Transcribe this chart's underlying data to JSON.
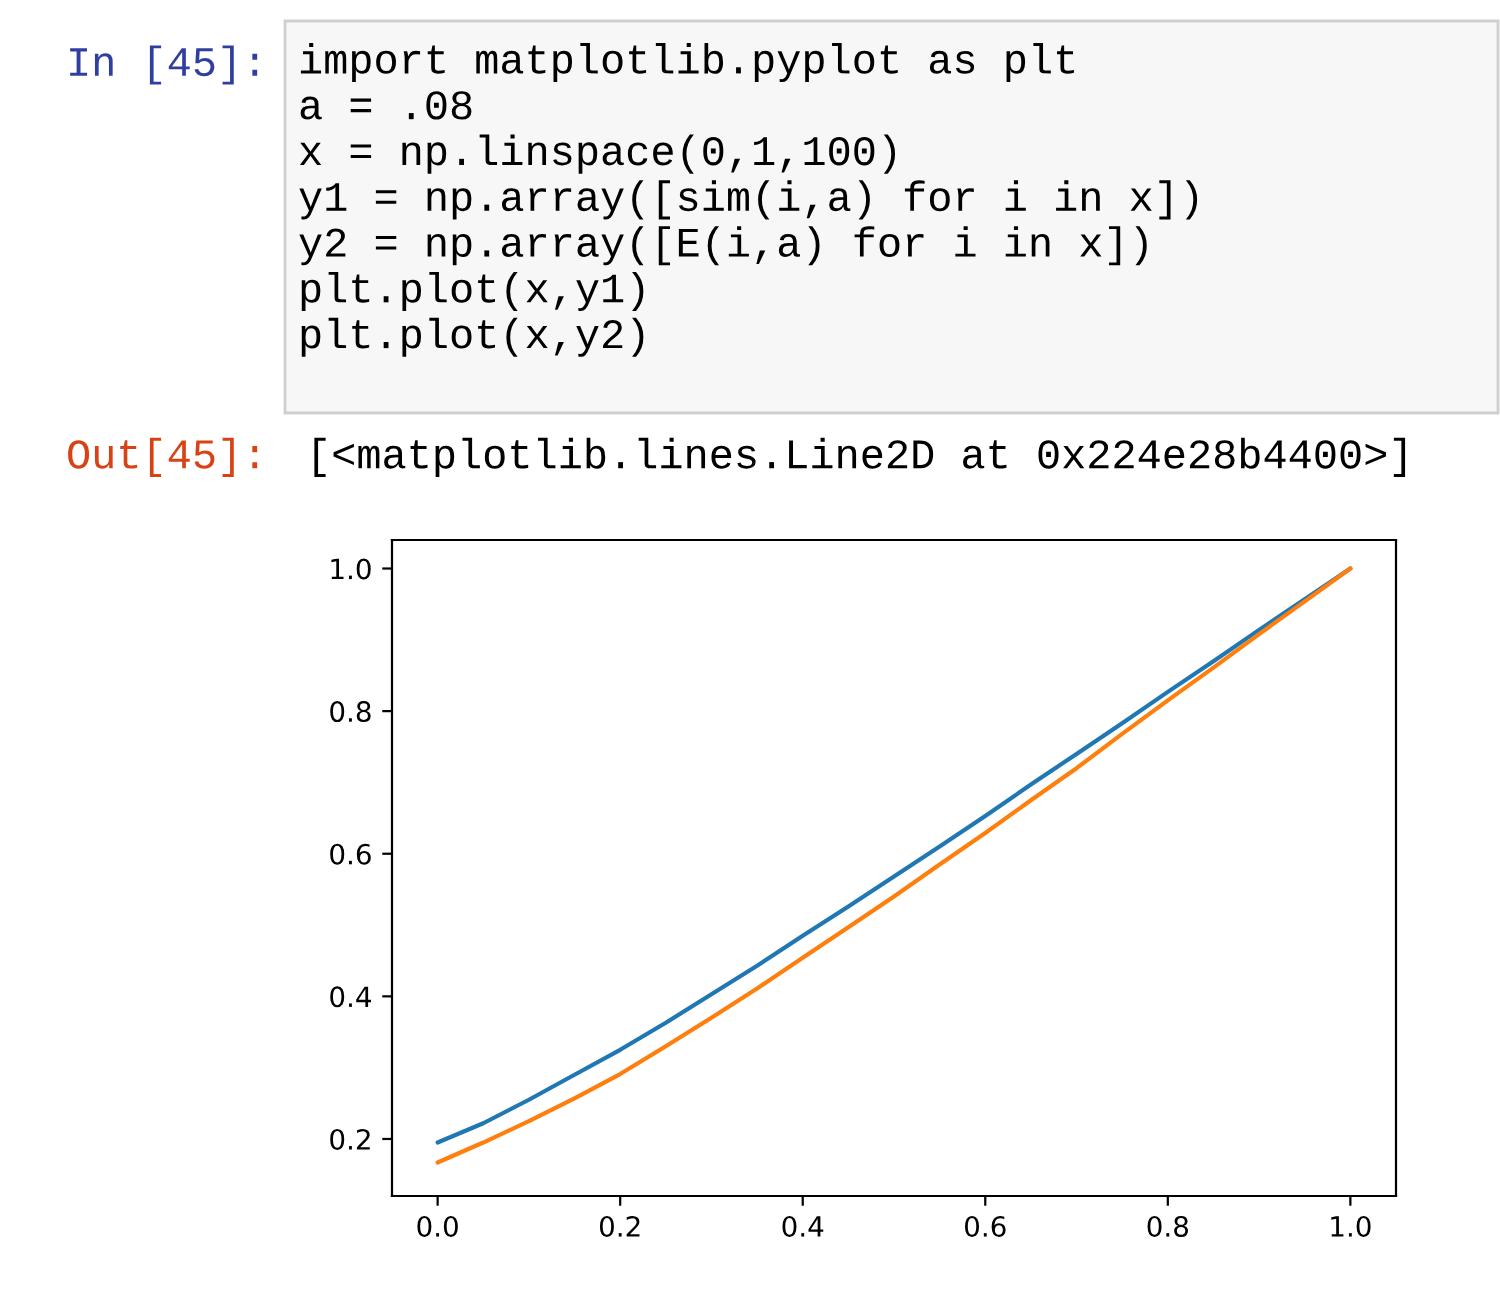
{
  "chart_data": {
    "type": "line",
    "annotations": [
      "In [45]:",
      "import matplotlib.pyplot as plt\na = .08\nx = np.linspace(0,1,100)\ny1 = np.array([sim(i,a) for i in x])\ny2 = np.array([E(i,a) for i in x])\nplt.plot(x,y1)\nplt.plot(x,y2)",
      "Out[45]:",
      "[<matplotlib.lines.Line2D at 0x224e28b4400>]"
    ],
    "x": [
      0,
      0.05,
      0.1,
      0.15,
      0.2,
      0.25,
      0.3,
      0.35,
      0.4,
      0.45,
      0.5,
      0.55,
      0.6,
      0.65,
      0.7,
      0.75,
      0.8,
      0.85,
      0.9,
      0.95,
      1.0
    ],
    "series": [
      {
        "color": "#1f77b4",
        "values": [
          0.195,
          0.222,
          0.255,
          0.29,
          0.325,
          0.363,
          0.403,
          0.443,
          0.485,
          0.526,
          0.568,
          0.61,
          0.653,
          0.697,
          0.74,
          0.783,
          0.827,
          0.87,
          0.914,
          0.957,
          1.0
        ]
      },
      {
        "color": "#ff7f0e",
        "values": [
          0.167,
          0.195,
          0.225,
          0.257,
          0.291,
          0.33,
          0.37,
          0.411,
          0.454,
          0.497,
          0.54,
          0.585,
          0.629,
          0.675,
          0.72,
          0.768,
          0.815,
          0.861,
          0.908,
          0.954,
          1.0
        ]
      }
    ],
    "xlim": [
      -0.05,
      1.05
    ],
    "ylim": [
      0.12,
      1.04
    ],
    "xticks": [
      {
        "value": 0,
        "label": "0.0"
      },
      {
        "value": 0.2,
        "label": "0.2"
      },
      {
        "value": 0.4,
        "label": "0.4"
      },
      {
        "value": 0.6,
        "label": "0.6"
      },
      {
        "value": 0.8,
        "label": "0.8"
      },
      {
        "value": 1,
        "label": "1.0"
      }
    ],
    "yticks": [
      {
        "value": 0.2,
        "label": "0.2"
      },
      {
        "value": 0.4,
        "label": "0.4"
      },
      {
        "value": 0.6,
        "label": "0.6"
      },
      {
        "value": 0.8,
        "label": "0.8"
      },
      {
        "value": 1,
        "label": "1.0"
      }
    ]
  }
}
